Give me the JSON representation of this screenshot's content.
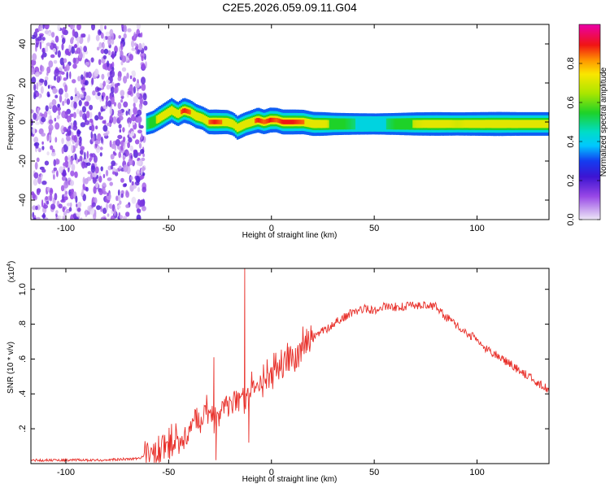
{
  "title": "C2E5.2026.059.09.11.G04",
  "chart_data": [
    {
      "type": "heatmap",
      "title": "C2E5.2026.059.09.11.G04",
      "xlabel": "Height of straight line (km)",
      "ylabel": "Frequency (Hz)",
      "xlim": [
        -117,
        135
      ],
      "ylim": [
        -50,
        50
      ],
      "xticks": [
        -100,
        -50,
        0,
        50,
        100
      ],
      "yticks": [
        -40,
        -20,
        0,
        20,
        40
      ],
      "colorbar": {
        "label": "Normalized spectral amplitude",
        "range": [
          0,
          1
        ],
        "ticks": [
          "0.0",
          "0.2",
          "0.4",
          "0.6",
          "0.8"
        ],
        "colormap": "rainbow (lavender-purple-blue-cyan-green-yellow-orange-red-magenta)"
      },
      "noise_region": {
        "x": [
          -117,
          -61
        ],
        "level": [
          0.0,
          0.2
        ]
      },
      "ridge": {
        "x": [
          -61,
          -58,
          -55,
          -52,
          -49,
          -46,
          -43,
          -40,
          -37,
          -34,
          -31,
          -28,
          -25,
          -22,
          -19,
          -17,
          -15,
          -13,
          -10,
          -7,
          -4,
          -1,
          2,
          5,
          10,
          15,
          20,
          25,
          30,
          40,
          50,
          60,
          70,
          80,
          90,
          100,
          110,
          120,
          130,
          135
        ],
        "freq": [
          -1,
          0,
          2,
          4,
          6,
          4,
          6,
          5,
          3,
          2,
          0,
          0,
          0,
          0,
          -1,
          -3,
          -2,
          -1,
          0,
          1,
          0,
          1,
          1,
          0,
          0,
          0,
          -1,
          -1,
          -1,
          -1,
          -1,
          -1,
          -1,
          -1,
          -1,
          -1,
          -1,
          -1,
          -1,
          -1
        ],
        "amplitude": [
          0.5,
          0.6,
          0.75,
          0.8,
          0.85,
          0.8,
          0.9,
          0.85,
          0.8,
          0.7,
          0.85,
          0.9,
          0.85,
          0.8,
          0.7,
          0.75,
          0.8,
          0.75,
          0.8,
          0.9,
          0.85,
          0.9,
          0.85,
          0.9,
          0.9,
          0.85,
          0.8,
          0.75,
          0.6,
          0.5,
          0.45,
          0.55,
          0.7,
          0.75,
          0.7,
          0.75,
          0.8,
          0.75,
          0.75,
          0.75
        ]
      }
    },
    {
      "type": "line",
      "xlabel": "Height of straight line (km)",
      "ylabel": "SNR (10 * v/v)",
      "yscale_label": "(x10^4)",
      "yscale_base": "(x10",
      "yscale_exp": "4",
      "xlim": [
        -117,
        135
      ],
      "ylim": [
        0,
        1.12
      ],
      "xticks": [
        -100,
        -50,
        0,
        50,
        100
      ],
      "yticks": [
        0.2,
        0.4,
        0.6,
        0.8,
        1.0
      ],
      "color": "#e8302a",
      "x": [
        -117,
        -100,
        -80,
        -65,
        -60,
        -55,
        -50,
        -45,
        -40,
        -35,
        -30,
        -28,
        -25,
        -20,
        -15,
        -12,
        -10,
        -5,
        0,
        5,
        10,
        15,
        20,
        25,
        30,
        35,
        40,
        45,
        50,
        55,
        60,
        65,
        70,
        75,
        80,
        85,
        90,
        95,
        100,
        105,
        110,
        115,
        120,
        125,
        130,
        135
      ],
      "y": [
        0.02,
        0.02,
        0.02,
        0.03,
        0.05,
        0.08,
        0.12,
        0.15,
        0.2,
        0.25,
        0.3,
        0.22,
        0.3,
        0.36,
        0.4,
        0.38,
        0.42,
        0.46,
        0.52,
        0.58,
        0.62,
        0.68,
        0.72,
        0.76,
        0.8,
        0.84,
        0.87,
        0.89,
        0.88,
        0.9,
        0.9,
        0.9,
        0.91,
        0.91,
        0.9,
        0.84,
        0.79,
        0.75,
        0.71,
        0.65,
        0.62,
        0.58,
        0.54,
        0.5,
        0.46,
        0.42
      ],
      "spikes": [
        {
          "x": -28,
          "y": 0.61
        },
        {
          "x": -27,
          "y": 0.02
        },
        {
          "x": -13,
          "y": 1.12
        },
        {
          "x": -11,
          "y": 0.12
        }
      ]
    }
  ]
}
